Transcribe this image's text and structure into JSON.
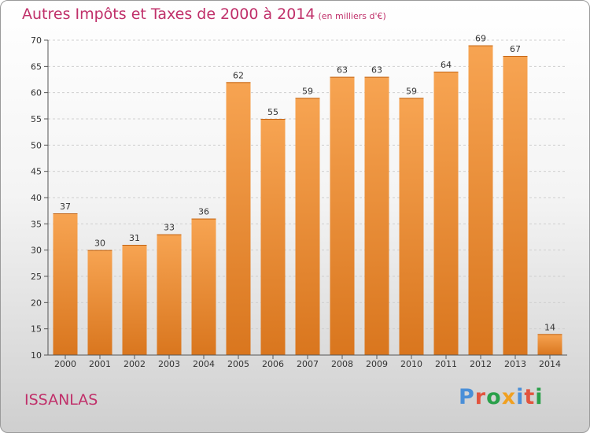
{
  "header": {
    "title": "Autres Impôts et Taxes de 2000 à 2014",
    "subtitle": "(en milliers d'€)"
  },
  "footer": {
    "place": "ISSANLAS",
    "logo_text": "Proxiti"
  },
  "colors": {
    "title": "#c0306a",
    "bar_light": "#f7a452",
    "bar_dark": "#d9761e",
    "logo_letters": [
      "#4a8fd8",
      "#e2543e",
      "#2aa04a",
      "#f0a020",
      "#4a8fd8",
      "#e2543e",
      "#2aa04a"
    ]
  },
  "chart_data": {
    "type": "bar",
    "categories": [
      "2000",
      "2001",
      "2002",
      "2003",
      "2004",
      "2005",
      "2006",
      "2007",
      "2008",
      "2009",
      "2010",
      "2011",
      "2012",
      "2013",
      "2014"
    ],
    "values": [
      37,
      30,
      31,
      33,
      36,
      62,
      55,
      59,
      63,
      63,
      59,
      64,
      69,
      67,
      14
    ],
    "ylim": [
      10,
      70
    ],
    "yticks": [
      10,
      15,
      20,
      25,
      30,
      35,
      40,
      45,
      50,
      55,
      60,
      65,
      70
    ],
    "grid": true
  }
}
